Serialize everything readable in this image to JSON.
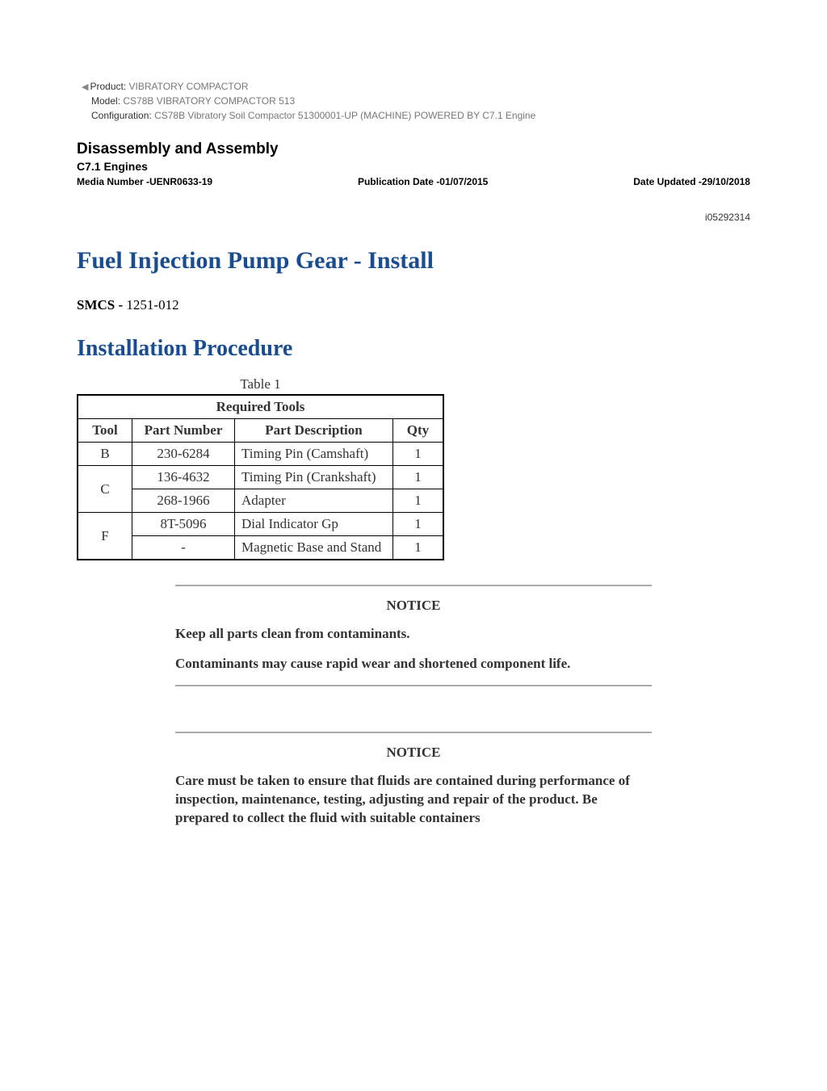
{
  "meta": {
    "product_label": "Product:",
    "product_value": "VIBRATORY COMPACTOR",
    "model_label": "Model:",
    "model_value": "CS78B VIBRATORY COMPACTOR 513",
    "config_label": "Configuration:",
    "config_value": "CS78B Vibratory Soil Compactor 51300001-UP (MACHINE) POWERED BY C7.1 Engine"
  },
  "header": {
    "section_title": "Disassembly and Assembly",
    "section_sub": "C7.1 Engines",
    "media_number": "Media Number -UENR0633-19",
    "pub_date": "Publication Date -01/07/2015",
    "date_updated": "Date Updated -29/10/2018",
    "doc_id": "i05292314"
  },
  "content": {
    "title": "Fuel Injection Pump Gear - Install",
    "smcs_label": "SMCS -",
    "smcs_code": " 1251-012",
    "proc_title": "Installation Procedure"
  },
  "table": {
    "caption": "Table 1",
    "title": "Required Tools",
    "cols": {
      "tool": "Tool",
      "pn": "Part Number",
      "desc": "Part Description",
      "qty": "Qty"
    },
    "rows": [
      {
        "tool": "B",
        "rowspan": 1,
        "pn": "230-6284",
        "desc": "Timing Pin (Camshaft)",
        "qty": "1"
      },
      {
        "tool": "C",
        "rowspan": 2,
        "pn": "136-4632",
        "desc": "Timing Pin (Crankshaft)",
        "qty": "1"
      },
      {
        "tool": "",
        "rowspan": 0,
        "pn": "268-1966",
        "desc": "Adapter",
        "qty": "1"
      },
      {
        "tool": "F",
        "rowspan": 2,
        "pn": "8T-5096",
        "desc": "Dial Indicator Gp",
        "qty": "1"
      },
      {
        "tool": "",
        "rowspan": 0,
        "pn": "-",
        "desc": "Magnetic Base and Stand",
        "qty": "1"
      }
    ]
  },
  "notices": {
    "title": "NOTICE",
    "n1_line1": "Keep all parts clean from contaminants.",
    "n1_line2": "Contaminants may cause rapid wear and shortened component life.",
    "n2_line1": "Care must be taken to ensure that fluids are contained during performance of inspection, maintenance, testing, adjusting and repair of the product. Be prepared to collect the fluid with suitable containers"
  }
}
